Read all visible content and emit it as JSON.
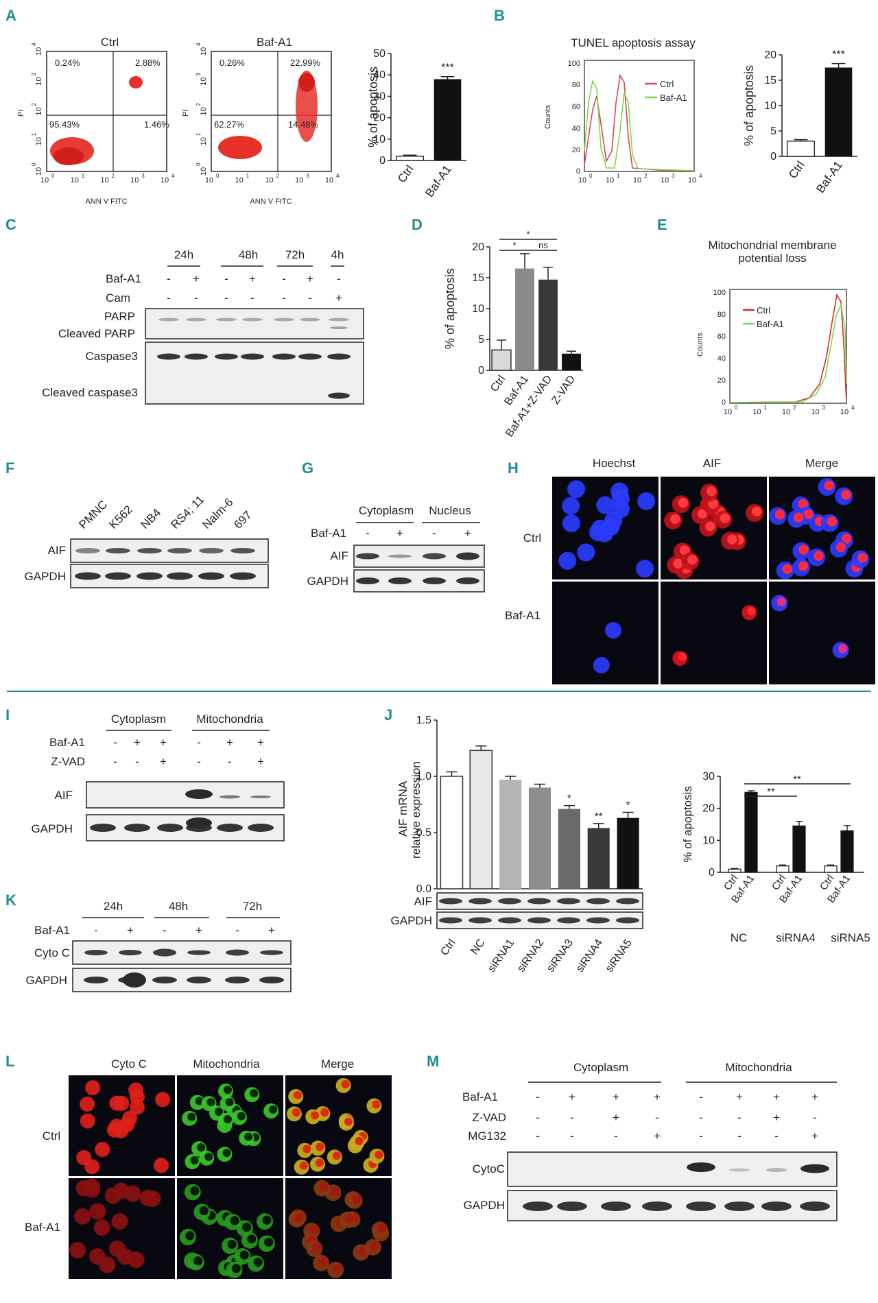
{
  "panels": {
    "A": {
      "label": "A",
      "flow": [
        {
          "title": "Ctrl",
          "q_ul": "0.24%",
          "q_ur": "2.88%",
          "q_ll": "95.43%",
          "q_lr": "1.46%"
        },
        {
          "title": "Baf-A1",
          "q_ul": "0.26%",
          "q_ur": "22.99%",
          "q_ll": "62.27%",
          "q_lr": "14.48%"
        }
      ],
      "flow_xlabel": "ANN V FITC",
      "flow_ylabel": "PI",
      "log_ticks": [
        "10",
        "10",
        "10",
        "10",
        "10"
      ],
      "log_exp": [
        "0",
        "1",
        "2",
        "3",
        "4"
      ]
    },
    "B": {
      "label": "B",
      "hist_title": "TUNEL apoptosis assay",
      "hist_ylabel": "Counts",
      "legend": [
        "Ctrl",
        "Baf-A1"
      ],
      "yticks": [
        "0",
        "20",
        "40",
        "60",
        "80",
        "100"
      ]
    },
    "C": {
      "label": "C",
      "times": [
        "24h",
        "48h",
        "72h",
        "4h"
      ],
      "row_labels": [
        "Baf-A1",
        "Cam"
      ],
      "bafa1": [
        "-",
        "+",
        "-",
        "+",
        "-",
        "+",
        "-"
      ],
      "cam": [
        "-",
        "-",
        "-",
        "-",
        "-",
        "-",
        "+"
      ],
      "blot_labels": [
        "PARP",
        "Cleaved PARP",
        "Caspase3",
        "Cleaved caspase3"
      ]
    },
    "D": {
      "label": "D",
      "sig": [
        "*",
        "*",
        "ns"
      ]
    },
    "E": {
      "label": "E",
      "title_line1": "Mitochondrial membrane",
      "title_line2": "potential loss",
      "legend": [
        "Ctrl",
        "Baf-A1"
      ],
      "ylabel": "Counts"
    },
    "F": {
      "label": "F",
      "cells": [
        "PMNC",
        "K562",
        "NB4",
        "RS4; 11",
        "Nalm-6",
        "697"
      ],
      "blot_labels": [
        "AIF",
        "GAPDH"
      ]
    },
    "G": {
      "label": "G",
      "groups": [
        "Cytoplasm",
        "Nucleus"
      ],
      "row_label": "Baf-A1",
      "signs": [
        "-",
        "+",
        "-",
        "+"
      ],
      "blot_labels": [
        "AIF",
        "GAPDH"
      ]
    },
    "H": {
      "label": "H",
      "cols": [
        "Hoechst",
        "AIF",
        "Merge"
      ],
      "rows": [
        "Ctrl",
        "Baf-A1"
      ]
    },
    "I": {
      "label": "I",
      "groups": [
        "Cytoplasm",
        "Mitochondria"
      ],
      "row_labels": [
        "Baf-A1",
        "Z-VAD"
      ],
      "bafa1": [
        "-",
        "+",
        "+",
        "-",
        "+",
        "+"
      ],
      "zvad": [
        "-",
        "-",
        "+",
        "-",
        "-",
        "+"
      ],
      "blot_labels": [
        "AIF",
        "GAPDH"
      ]
    },
    "J": {
      "label": "J",
      "ylabel_line1": "AIF mRNA",
      "ylabel_line2": "relative expression",
      "blot_labels": [
        "AIF",
        "GAPDH"
      ],
      "sig": [
        "*",
        "**",
        "*"
      ],
      "right_sig": [
        "**",
        "**"
      ],
      "groups": [
        "NC",
        "siRNA4",
        "siRNA5"
      ],
      "pair_labels": [
        "Ctrl",
        "Baf-A1"
      ],
      "right_ylabel": "% of apoptosis"
    },
    "K": {
      "label": "K",
      "times": [
        "24h",
        "48h",
        "72h"
      ],
      "row_label": "Baf-A1",
      "signs": [
        "-",
        "+",
        "-",
        "+",
        "-",
        "+"
      ],
      "blot_labels": [
        "Cyto C",
        "GAPDH"
      ]
    },
    "L": {
      "label": "L",
      "cols": [
        "Cyto C",
        "Mitochondria",
        "Merge"
      ],
      "rows": [
        "Ctrl",
        "Baf-A1"
      ]
    },
    "M": {
      "label": "M",
      "groups": [
        "Cytoplasm",
        "Mitochondria"
      ],
      "row_labels": [
        "Baf-A1",
        "Z-VAD",
        "MG132"
      ],
      "bafa1": [
        "-",
        "+",
        "+",
        "+",
        "-",
        "+",
        "+",
        "+"
      ],
      "zvad": [
        "-",
        "-",
        "+",
        "-",
        "-",
        "-",
        "+",
        "-"
      ],
      "mg132": [
        "-",
        "-",
        "-",
        "+",
        "-",
        "-",
        "-",
        "+"
      ],
      "blot_labels": [
        "CytoC",
        "GAPDH"
      ]
    }
  },
  "chart_data": [
    {
      "id": "A-bar",
      "type": "bar",
      "categories": [
        "Ctrl",
        "Baf-A1"
      ],
      "values": [
        2,
        38
      ],
      "errors": [
        0.5,
        1.2
      ],
      "fills": [
        "#ffffff",
        "#111111"
      ],
      "ylabel": "% of apoptosis",
      "ylim": [
        0,
        50
      ],
      "yticks": [
        0,
        10,
        20,
        30,
        40,
        50
      ],
      "annotation": "***"
    },
    {
      "id": "B-bar",
      "type": "bar",
      "categories": [
        "Ctrl",
        "Baf-A1"
      ],
      "values": [
        3,
        17.5
      ],
      "errors": [
        0.3,
        0.8
      ],
      "fills": [
        "#ffffff",
        "#111111"
      ],
      "ylabel": "% of apoptosis",
      "ylim": [
        0,
        20
      ],
      "yticks": [
        0,
        5,
        10,
        15,
        20
      ],
      "annotation": "***"
    },
    {
      "id": "D-bar",
      "type": "bar",
      "categories": [
        "Ctrl",
        "Baf-A1",
        "Baf-A1+Z-VAD",
        "Z-VAD"
      ],
      "values": [
        3.3,
        16.5,
        14.7,
        2.7
      ],
      "errors": [
        1.6,
        2.4,
        2.0,
        0.4
      ],
      "fills": [
        "#d9d9d9",
        "#8a8a8a",
        "#3a3a3a",
        "#111111"
      ],
      "ylabel": "% of apoptosis",
      "ylim": [
        0,
        20
      ],
      "yticks": [
        0,
        5,
        10,
        15,
        20
      ]
    },
    {
      "id": "J-bar",
      "type": "bar",
      "categories": [
        "Ctrl",
        "NC",
        "siRNA1",
        "siRNA2",
        "siRNA3",
        "siRNA4",
        "siRNA5"
      ],
      "values": [
        1.0,
        1.23,
        0.97,
        0.9,
        0.71,
        0.54,
        0.63
      ],
      "errors": [
        0.04,
        0.04,
        0.03,
        0.03,
        0.03,
        0.04,
        0.05
      ],
      "fills": [
        "#ffffff",
        "#e8e8e8",
        "#b5b5b5",
        "#8e8e8e",
        "#6a6a6a",
        "#3a3a3a",
        "#111111"
      ],
      "annotations": [
        "",
        "",
        "",
        "",
        "*",
        "**",
        "*"
      ],
      "ylim": [
        0,
        1.5
      ],
      "yticks": [
        0.0,
        0.5,
        1.0,
        1.5
      ],
      "ytick_labels": [
        "0.0",
        "0.5",
        "1.0",
        "1.5"
      ]
    },
    {
      "id": "J-right",
      "type": "bar",
      "categories": [
        "NC",
        "siRNA4",
        "siRNA5"
      ],
      "series": [
        {
          "name": "Ctrl",
          "values": [
            1,
            2,
            2
          ],
          "fill": "#ffffff"
        },
        {
          "name": "Baf-A1",
          "values": [
            25,
            14.5,
            13
          ],
          "fill": "#111111"
        }
      ],
      "errors": [
        [
          0.2,
          0.3,
          0.3
        ],
        [
          0.5,
          1.4,
          1.6
        ]
      ],
      "ylim": [
        0,
        30
      ],
      "yticks": [
        0,
        10,
        20,
        30
      ]
    }
  ]
}
